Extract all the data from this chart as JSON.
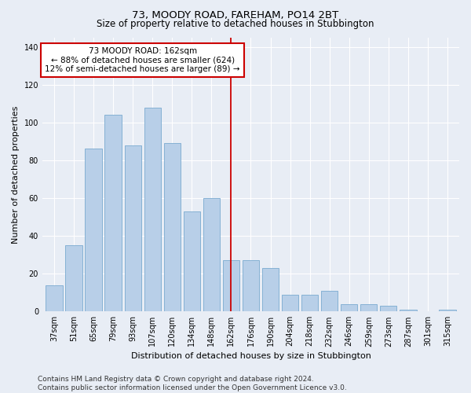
{
  "title": "73, MOODY ROAD, FAREHAM, PO14 2BT",
  "subtitle": "Size of property relative to detached houses in Stubbington",
  "xlabel": "Distribution of detached houses by size in Stubbington",
  "ylabel": "Number of detached properties",
  "categories": [
    "37sqm",
    "51sqm",
    "65sqm",
    "79sqm",
    "93sqm",
    "107sqm",
    "120sqm",
    "134sqm",
    "148sqm",
    "162sqm",
    "176sqm",
    "190sqm",
    "204sqm",
    "218sqm",
    "232sqm",
    "246sqm",
    "259sqm",
    "273sqm",
    "287sqm",
    "301sqm",
    "315sqm"
  ],
  "values": [
    14,
    35,
    86,
    104,
    88,
    108,
    89,
    53,
    60,
    27,
    27,
    23,
    9,
    9,
    11,
    4,
    4,
    3,
    1,
    0,
    1
  ],
  "bar_color": "#b8cfe8",
  "bar_edge_color": "#7aaad0",
  "vline_x_idx": 9,
  "vline_color": "#cc0000",
  "annotation_line1": "73 MOODY ROAD: 162sqm",
  "annotation_line2": "← 88% of detached houses are smaller (624)",
  "annotation_line3": "12% of semi-detached houses are larger (89) →",
  "annotation_box_facecolor": "#ffffff",
  "annotation_box_edgecolor": "#cc0000",
  "ylim": [
    0,
    145
  ],
  "yticks": [
    0,
    20,
    40,
    60,
    80,
    100,
    120,
    140
  ],
  "background_color": "#e8edf5",
  "grid_color": "#ffffff",
  "footnote": "Contains HM Land Registry data © Crown copyright and database right 2024.\nContains public sector information licensed under the Open Government Licence v3.0.",
  "title_fontsize": 9.5,
  "subtitle_fontsize": 8.5,
  "xlabel_fontsize": 8,
  "ylabel_fontsize": 8,
  "tick_fontsize": 7,
  "annotation_fontsize": 7.5,
  "footnote_fontsize": 6.5
}
